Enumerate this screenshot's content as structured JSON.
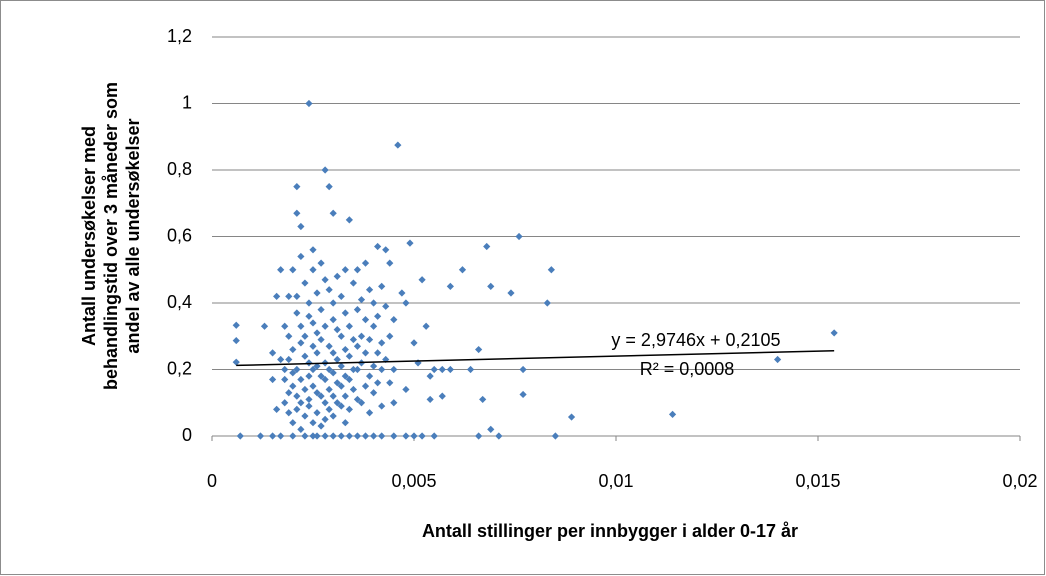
{
  "chart_data": {
    "type": "scatter",
    "xlabel": "Antall stillinger per innbygger i alder 0-17 år",
    "ylabel": [
      "Antall undersøkelser med",
      "behandlingstid over 3 måneder som",
      "andel av alle undersøkelser"
    ],
    "color": "#4a7ebb",
    "xlim": [
      0,
      0.02
    ],
    "xticks": [
      0,
      {
        "value": 0.005,
        "label": "0,005"
      },
      {
        "value": 0.01,
        "label": "0,01"
      },
      {
        "value": 0.015,
        "label": "0,015"
      },
      {
        "value": 0.02,
        "label": "0,02"
      }
    ],
    "ylim": [
      0,
      1.2
    ],
    "yticks": [
      0,
      {
        "value": 0.2,
        "label": "0,2"
      },
      {
        "value": 0.4,
        "label": "0,4"
      },
      {
        "value": 0.6,
        "label": "0,6"
      },
      {
        "value": 0.8,
        "label": "0,8"
      },
      1,
      {
        "value": 1.2,
        "label": "1,2"
      }
    ],
    "grid": true,
    "trendline": {
      "slope": 2.9746,
      "intercept": 0.2105,
      "label": "y = 2,9746x + 0,2105",
      "r2_label": "R² = 0,0008"
    },
    "x": [
      0.0006,
      0.0006,
      0.0006,
      0.0007,
      0.0012,
      0.0013,
      0.0015,
      0.0017,
      0.0019,
      0.0021,
      0.0021,
      0.0022,
      0.0024,
      0.0025,
      0.0028,
      0.0029,
      0.003,
      0.0034,
      0.0046,
      0.0049,
      0.0059,
      0.0062,
      0.0068,
      0.0076,
      0.0084,
      0.0083,
      0.0074,
      0.0089,
      0.0114,
      0.014,
      0.0154,
      0.0085,
      0.0071,
      0.0069,
      0.0066,
      0.0077,
      0.0077,
      0.0066,
      0.0067,
      0.0069,
      0.0064,
      0.0059,
      0.0053,
      0.0052,
      0.0048,
      0.0047,
      0.005,
      0.0051,
      0.0048,
      0.0054,
      0.0054,
      0.0057,
      0.0055,
      0.0057,
      0.0048,
      0.005,
      0.0052,
      0.0055,
      0.0045,
      0.0015,
      0.0015,
      0.0016,
      0.0016,
      0.0017,
      0.0017,
      0.0018,
      0.0018,
      0.0018,
      0.0018,
      0.0019,
      0.0019,
      0.0019,
      0.0019,
      0.002,
      0.002,
      0.002,
      0.002,
      0.002,
      0.002,
      0.0021,
      0.0021,
      0.0021,
      0.0021,
      0.0021,
      0.0022,
      0.0022,
      0.0022,
      0.0022,
      0.0022,
      0.0022,
      0.0023,
      0.0023,
      0.0023,
      0.0023,
      0.0023,
      0.0023,
      0.0024,
      0.0024,
      0.0024,
      0.0024,
      0.0024,
      0.0024,
      0.0025,
      0.0025,
      0.0025,
      0.0025,
      0.0025,
      0.0025,
      0.0025,
      0.0026,
      0.0026,
      0.0026,
      0.0026,
      0.0026,
      0.0026,
      0.0026,
      0.0027,
      0.0027,
      0.0027,
      0.0027,
      0.0027,
      0.0027,
      0.0028,
      0.0028,
      0.0028,
      0.0028,
      0.0028,
      0.0028,
      0.0028,
      0.0029,
      0.0029,
      0.0029,
      0.0029,
      0.0029,
      0.003,
      0.003,
      0.003,
      0.003,
      0.003,
      0.003,
      0.003,
      0.0031,
      0.0031,
      0.0031,
      0.0031,
      0.0031,
      0.0032,
      0.0032,
      0.0032,
      0.0032,
      0.0032,
      0.0032,
      0.0033,
      0.0033,
      0.0033,
      0.0033,
      0.0033,
      0.0033,
      0.0034,
      0.0034,
      0.0034,
      0.0034,
      0.0034,
      0.0035,
      0.0035,
      0.0035,
      0.0035,
      0.0036,
      0.0036,
      0.0036,
      0.0036,
      0.0036,
      0.0036,
      0.0037,
      0.0037,
      0.0037,
      0.0037,
      0.0038,
      0.0038,
      0.0038,
      0.0038,
      0.0038,
      0.0039,
      0.0039,
      0.0039,
      0.0039,
      0.004,
      0.004,
      0.004,
      0.004,
      0.004,
      0.0041,
      0.0041,
      0.0041,
      0.0041,
      0.0042,
      0.0042,
      0.0042,
      0.0042,
      0.0042,
      0.0043,
      0.0043,
      0.0043,
      0.0044,
      0.0044,
      0.0044,
      0.0045,
      0.0045,
      0.0045
    ],
    "values": [
      0.333,
      0.287,
      0.222,
      0,
      0,
      0.33,
      0.25,
      0.5,
      0.42,
      0.75,
      0.67,
      0.63,
      1,
      0.56,
      0.8,
      0.75,
      0.67,
      0.65,
      0.875,
      0.58,
      0.45,
      0.5,
      0.57,
      0.6,
      0.5,
      0.4,
      0.43,
      0.057,
      0.065,
      0.23,
      0.31,
      0,
      0,
      0.02,
      0,
      0.125,
      0.2,
      0.26,
      0.11,
      0.45,
      0.2,
      0.2,
      0.33,
      0.47,
      0.4,
      0.43,
      0.28,
      0.22,
      0.14,
      0.18,
      0.11,
      0.12,
      0.2,
      0.2,
      0,
      0,
      0,
      0,
      0,
      0.17,
      0,
      0.08,
      0.42,
      0.23,
      0,
      0.2,
      0.17,
      0.1,
      0.33,
      0.13,
      0.23,
      0.07,
      0.3,
      0.5,
      0.26,
      0.19,
      0.15,
      0.04,
      0,
      0.42,
      0.37,
      0.2,
      0.12,
      0.08,
      0.54,
      0.33,
      0.28,
      0.17,
      0.1,
      0.02,
      0.46,
      0.3,
      0.24,
      0.14,
      0.06,
      0,
      0.4,
      0.36,
      0.22,
      0.18,
      0.11,
      0.09,
      0.5,
      0.34,
      0.27,
      0.2,
      0.15,
      0.04,
      0,
      0.43,
      0.31,
      0.25,
      0.21,
      0.13,
      0.07,
      0,
      0.52,
      0.38,
      0.29,
      0.18,
      0.12,
      0.03,
      0.47,
      0.33,
      0.22,
      0.17,
      0.1,
      0.05,
      0,
      0.44,
      0.27,
      0.2,
      0.14,
      0.08,
      0.4,
      0.35,
      0.25,
      0.19,
      0.12,
      0.06,
      0,
      0.48,
      0.32,
      0.23,
      0.16,
      0.1,
      0.42,
      0.3,
      0.21,
      0.15,
      0.09,
      0,
      0.5,
      0.37,
      0.26,
      0.18,
      0.12,
      0.04,
      0.33,
      0.24,
      0.17,
      0.08,
      0,
      0.46,
      0.29,
      0.2,
      0.14,
      0.5,
      0.38,
      0.27,
      0.2,
      0.11,
      0,
      0.41,
      0.3,
      0.22,
      0.1,
      0.52,
      0.35,
      0.25,
      0.15,
      0,
      0.44,
      0.29,
      0.18,
      0.07,
      0.4,
      0.33,
      0.21,
      0.13,
      0,
      0.57,
      0.36,
      0.25,
      0.16,
      0.45,
      0.28,
      0.2,
      0.09,
      0,
      0.56,
      0.39,
      0.23,
      0.52,
      0.3,
      0.16,
      0.35,
      0.2,
      0.1
    ]
  }
}
